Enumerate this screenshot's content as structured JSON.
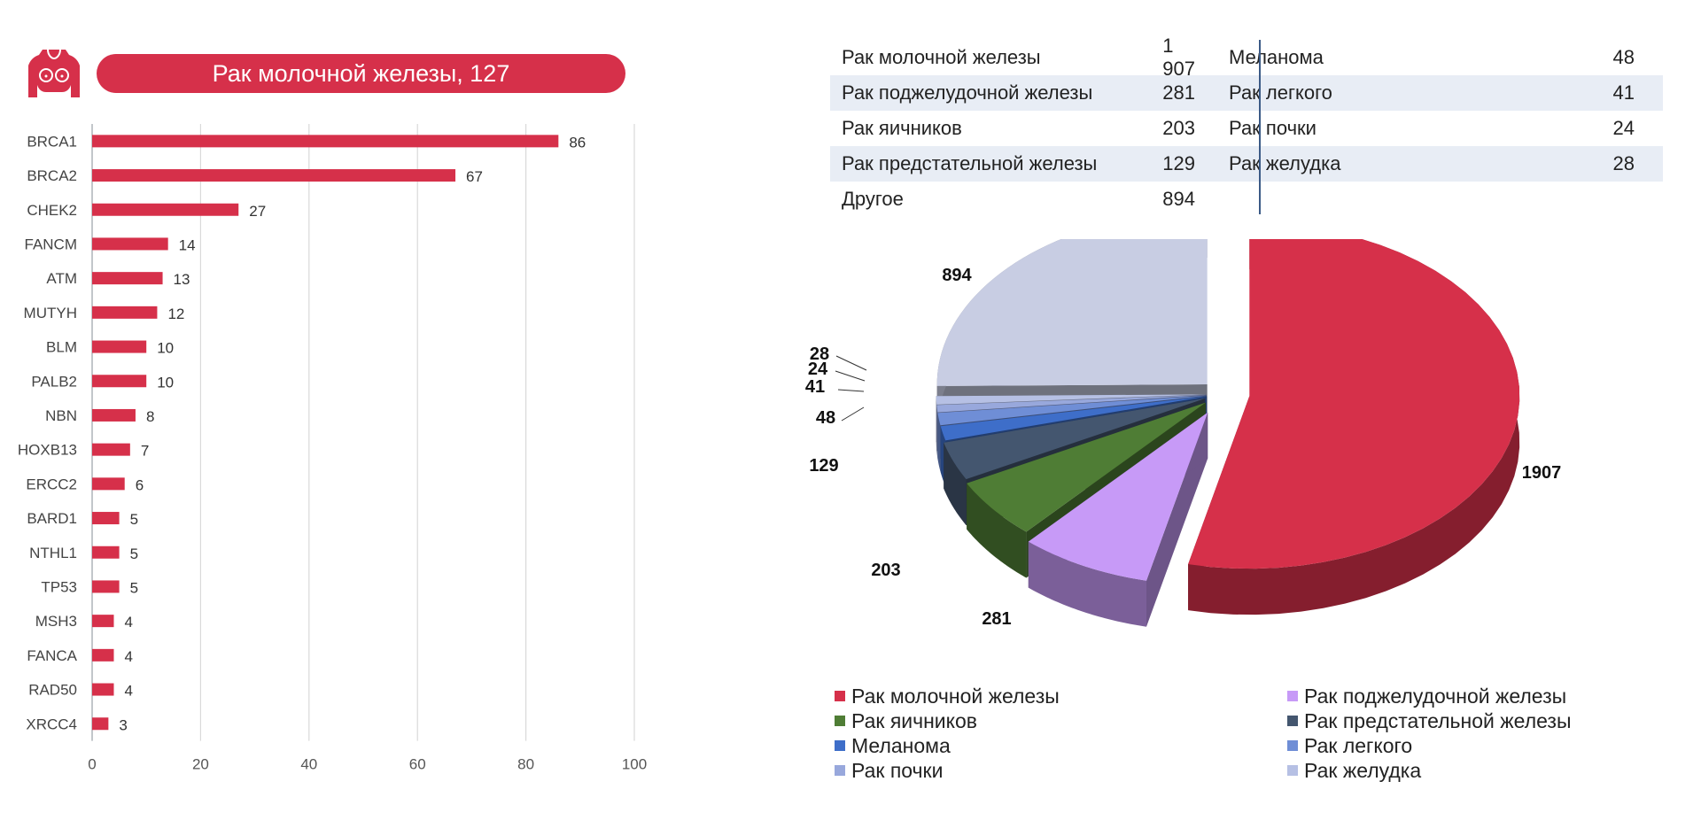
{
  "header": {
    "title": "Рак молочной железы, 127",
    "accent": "#d6304a",
    "icon": "female-torso-icon"
  },
  "chart_data": [
    {
      "type": "bar",
      "orientation": "horizontal",
      "categories": [
        "BRCA1",
        "BRCA2",
        "CHEK2",
        "FANCM",
        "ATM",
        "MUTYH",
        "BLM",
        "PALB2",
        "NBN",
        "HOXB13",
        "ERCC2",
        "BARD1",
        "NTHL1",
        "TP53",
        "MSH3",
        "FANCA",
        "RAD50",
        "XRCC4"
      ],
      "values": [
        86,
        67,
        27,
        14,
        13,
        12,
        10,
        10,
        8,
        7,
        6,
        5,
        5,
        5,
        4,
        4,
        4,
        3
      ],
      "xlim": [
        0,
        100
      ],
      "xticks": [
        0,
        20,
        40,
        60,
        80,
        100
      ],
      "grid": true,
      "color": "#d6304a"
    },
    {
      "type": "pie",
      "style": "3d-exploded",
      "categories": [
        "Рак молочной железы",
        "Рак поджелудочной железы",
        "Рак яичников",
        "Рак предстательной железы",
        "Меланома",
        "Рак легкого",
        "Рак почки",
        "Рак желудка",
        "Другое"
      ],
      "values": [
        1907,
        281,
        203,
        129,
        48,
        41,
        24,
        28,
        894
      ],
      "labels": [
        "1907",
        "281",
        "203",
        "129",
        "48",
        "41",
        "24",
        "28",
        "894"
      ],
      "colors": [
        "#d6304a",
        "#c79af7",
        "#4f7d35",
        "#44566f",
        "#3e6ec9",
        "#6f8ed6",
        "#98a8dc",
        "#b6c0e4",
        "#c8cde3"
      ],
      "legend_position": "bottom"
    }
  ],
  "table": {
    "left": [
      {
        "name": "Рак молочной железы",
        "value": "1 907"
      },
      {
        "name": "Рак поджелудочной железы",
        "value": "281"
      },
      {
        "name": "Рак яичников",
        "value": "203"
      },
      {
        "name": "Рак предстательной железы",
        "value": "129"
      },
      {
        "name": "Другое",
        "value": "894"
      }
    ],
    "right": [
      {
        "name": "Меланома",
        "value": "48"
      },
      {
        "name": "Рак легкого",
        "value": "41"
      },
      {
        "name": "Рак почки",
        "value": "24"
      },
      {
        "name": "Рак желудка",
        "value": "28"
      }
    ]
  },
  "legend": [
    {
      "label": "Рак молочной железы",
      "color": "#d6304a"
    },
    {
      "label": "Рак поджелудочной железы",
      "color": "#c79af7"
    },
    {
      "label": "Рак яичников",
      "color": "#4f7d35"
    },
    {
      "label": "Рак предстательной железы",
      "color": "#44566f"
    },
    {
      "label": "Меланома",
      "color": "#3e6ec9"
    },
    {
      "label": "Рак легкого",
      "color": "#6f8ed6"
    },
    {
      "label": "Рак почки",
      "color": "#98a8dc"
    },
    {
      "label": "Рак желудка",
      "color": "#b6c0e4"
    }
  ]
}
